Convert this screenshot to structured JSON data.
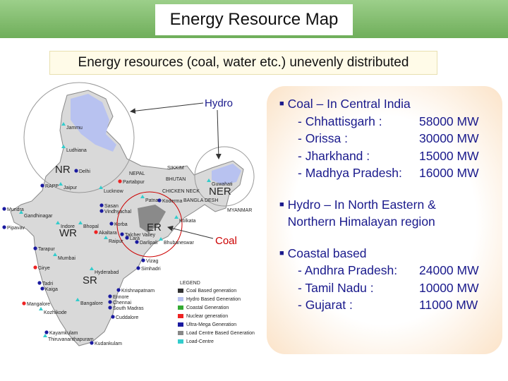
{
  "header": {
    "title": "Energy Resource Map",
    "subtitle": "Energy resources (coal, water etc.) unevenly distributed"
  },
  "map": {
    "callouts": [
      "Hydro",
      "Coal"
    ],
    "regions": [
      "NR",
      "NER",
      "WR",
      "ER",
      "SR"
    ],
    "places": [
      "Jammu",
      "Ludhiana",
      "Delhi",
      "NEPAL",
      "SIKKIM",
      "BHUTAN",
      "Guwahati",
      "RAPP",
      "Jaipur",
      "Lucknow",
      "Partabpur",
      "CHICKEN NECK",
      "Patna",
      "Koderma",
      "BANGLA DESH",
      "MYANMAR",
      "Mundra",
      "Gandhinagar",
      "Sasan",
      "Vindhyachal",
      "Indore",
      "Bhopal",
      "Korba",
      "Kolkata",
      "Pipavav",
      "Akaltara",
      "Talcher Valley",
      "Raipur",
      "Lara",
      "Darlipali",
      "Bhubaneswar",
      "Tarapur",
      "Mumbai",
      "Vizag",
      "Simhadri",
      "Girye",
      "Hyderabad",
      "Tadri",
      "Kaiga",
      "Krishnapatnam",
      "Mangalore",
      "Bangalore",
      "Ennore",
      "Chennai",
      "South Madras",
      "Kozhikode",
      "Cuddalore",
      "Kayamkulam",
      "Thiruvananthapuram",
      "Kudankulam"
    ],
    "legend": {
      "title": "LEGEND",
      "items": [
        "Coal Based generation",
        "Hydro Based Generation",
        "Coastal Generation",
        "Nuclear generation",
        "Ultra-Mega Generation",
        "Load Centre Based Generation",
        "Load-Centre"
      ]
    }
  },
  "bullets": [
    {
      "heading": "Coal – In Central India",
      "items": [
        {
          "name": "- Chhattisgarh :",
          "value": "58000 MW"
        },
        {
          "name": "- Orissa :",
          "value": "30000 MW"
        },
        {
          "name": "- Jharkhand :",
          "value": "15000 MW"
        },
        {
          "name": "- Madhya Pradesh:",
          "value": "16000 MW"
        }
      ]
    },
    {
      "heading": "Hydro – In North Eastern & Northern Himalayan region",
      "items": []
    },
    {
      "heading": "Coastal based",
      "items": [
        {
          "name": "- Andhra Pradesh:",
          "value": "24000 MW"
        },
        {
          "name": "- Tamil Nadu :",
          "value": "10000 MW"
        },
        {
          "name": "- Gujarat :",
          "value": "11000 MW"
        }
      ]
    }
  ]
}
